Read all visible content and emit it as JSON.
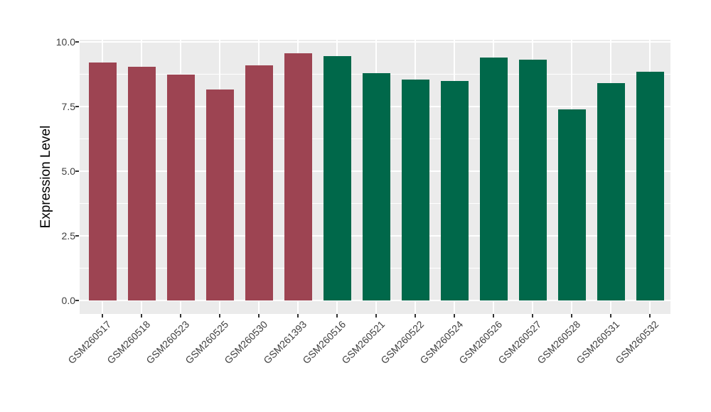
{
  "chart_data": {
    "type": "bar",
    "title": "",
    "xlabel": "",
    "ylabel": "Expression Level",
    "categories": [
      "GSM260517",
      "GSM260518",
      "GSM260523",
      "GSM260525",
      "GSM260530",
      "GSM261393",
      "GSM260516",
      "GSM260521",
      "GSM260522",
      "GSM260524",
      "GSM260526",
      "GSM260527",
      "GSM260528",
      "GSM260531",
      "GSM260532"
    ],
    "values": [
      9.2,
      9.05,
      8.75,
      8.15,
      9.1,
      9.55,
      9.45,
      8.8,
      8.55,
      8.5,
      9.4,
      9.3,
      7.4,
      8.4,
      8.85
    ],
    "bar_colors": [
      "#9D4452",
      "#9D4452",
      "#9D4452",
      "#9D4452",
      "#9D4452",
      "#9D4452",
      "#00684A",
      "#00684A",
      "#00684A",
      "#00684A",
      "#00684A",
      "#00684A",
      "#00684A",
      "#00684A",
      "#00684A"
    ],
    "group_colors": {
      "maroon_group": "#9D4452",
      "green_group": "#00684A"
    },
    "ylim": [
      0,
      10.05
    ],
    "ytick_labels": [
      "0.0",
      "2.5",
      "5.0",
      "7.5",
      "10.0"
    ],
    "ytick_values": [
      0,
      2.5,
      5,
      7.5,
      10
    ],
    "minor_gridline_values": [
      1.25,
      3.75,
      6.25,
      8.75
    ],
    "grid": true,
    "legend_position": "none",
    "panel_background": "#EBEBEB",
    "grid_color": "#FFFFFF",
    "tick_color": "#333333",
    "axis_text_color": "#404040"
  }
}
